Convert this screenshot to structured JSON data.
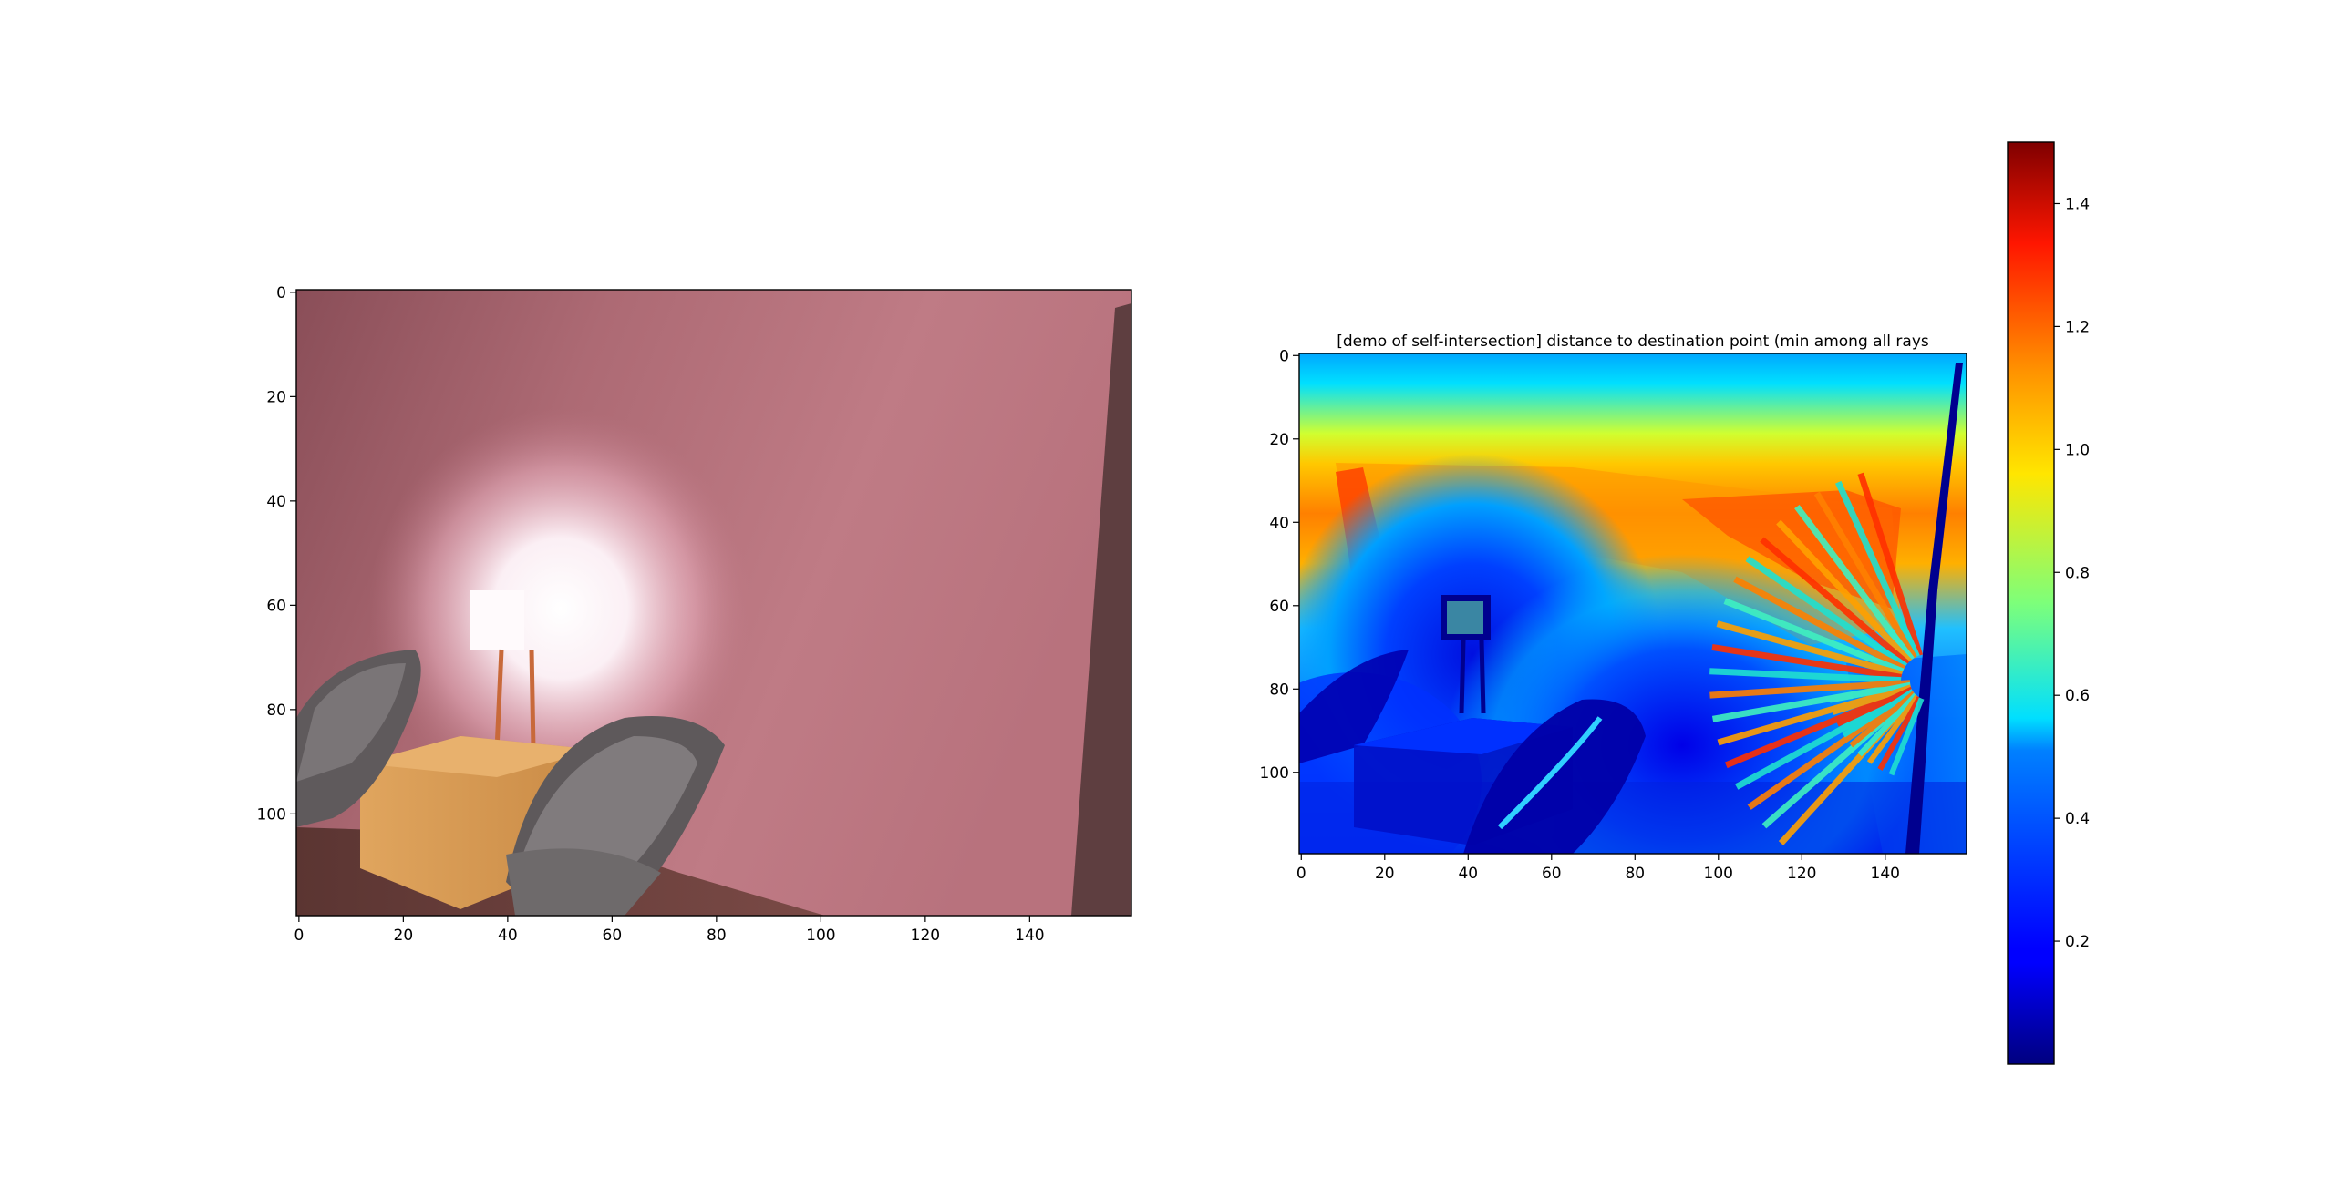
{
  "chart_data": [
    {
      "type": "heatmap",
      "title": "",
      "xlabel": "",
      "ylabel": "",
      "image_shape": [
        120,
        160
      ],
      "xlim": [
        0,
        160
      ],
      "ylim": [
        120,
        0
      ],
      "x_ticks": [
        0,
        20,
        40,
        60,
        80,
        100,
        120,
        140
      ],
      "y_ticks": [
        0,
        20,
        40,
        60,
        80,
        100
      ],
      "grid": false,
      "content": "rendered RGB image of room interior: pink wall, glowing lamp on wooden side table, two grey chairs"
    },
    {
      "type": "heatmap",
      "title": "[demo of self-intersection] distance to destination point (min among all rays",
      "xlabel": "",
      "ylabel": "",
      "image_shape": [
        120,
        160
      ],
      "xlim": [
        0,
        160
      ],
      "ylim": [
        120,
        0
      ],
      "x_ticks": [
        0,
        20,
        40,
        60,
        80,
        100,
        120,
        140
      ],
      "y_ticks": [
        0,
        20,
        40,
        60,
        80,
        100
      ],
      "grid": false,
      "colormap": "jet",
      "colorbar": {
        "range": [
          0.0,
          1.5
        ],
        "ticks": [
          0.2,
          0.4,
          0.6,
          0.8,
          1.0,
          1.2,
          1.4
        ],
        "tick_labels": [
          "0.2",
          "0.4",
          "0.6",
          "0.8",
          "1.0",
          "1.2",
          "1.4"
        ],
        "placement": "right"
      }
    }
  ]
}
